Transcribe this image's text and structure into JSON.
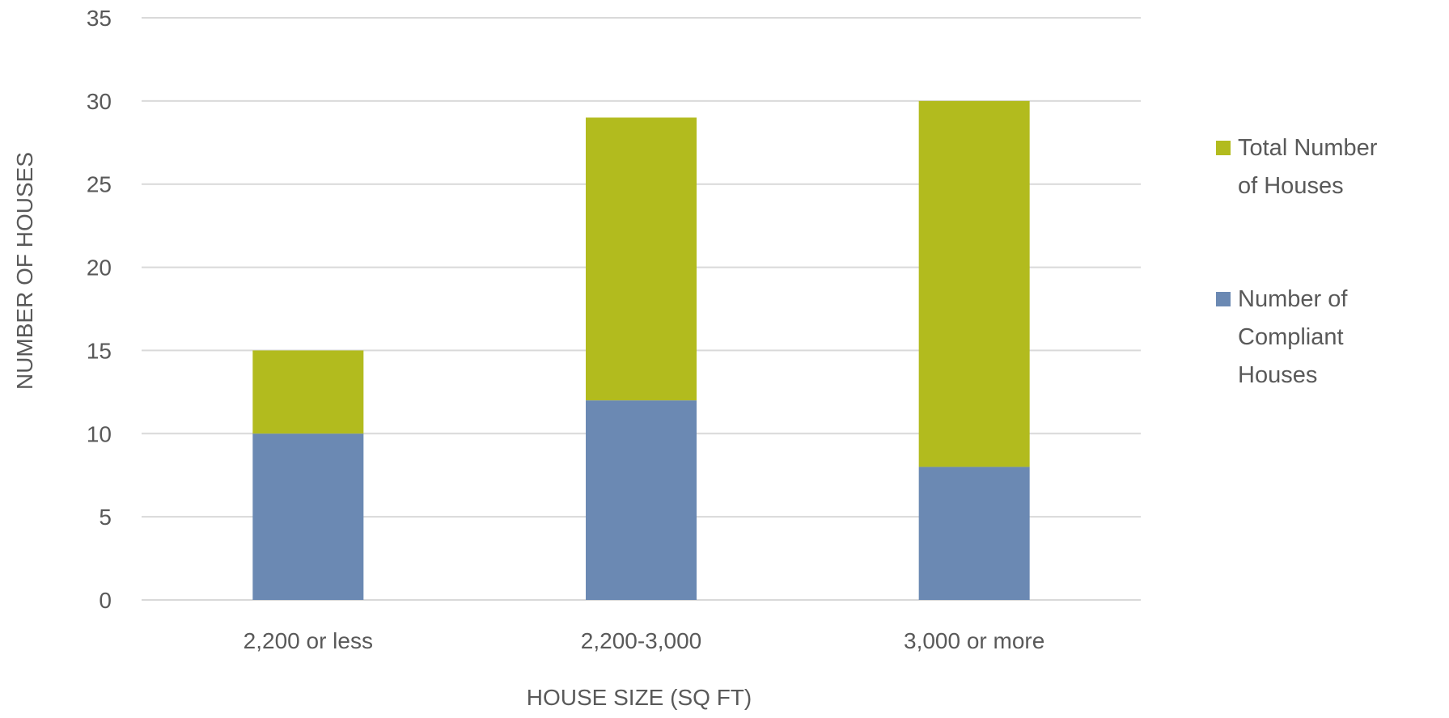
{
  "chart_data": {
    "type": "bar",
    "stacked": true,
    "categories": [
      "2,200 or less",
      "2,200-3,000",
      "3,000 or more"
    ],
    "series": [
      {
        "name": "Number of Compliant Houses",
        "values": [
          10,
          12,
          8
        ],
        "color": "#6b89b3",
        "legend_lines": [
          "Number of",
          "Compliant",
          "Houses"
        ]
      },
      {
        "name": "Total Number of Houses",
        "values": [
          5,
          17,
          22
        ],
        "color": "#b2bb1e",
        "legend_lines": [
          "Total Number",
          "of Houses"
        ]
      }
    ],
    "legend_order": [
      1,
      0
    ],
    "xlabel": "HOUSE SIZE (SQ FT)",
    "ylabel": "NUMBER OF HOUSES",
    "ylim": [
      0,
      35
    ],
    "yticks": [
      "0",
      "5",
      "10",
      "15",
      "20",
      "25",
      "30",
      "35"
    ],
    "grid": true,
    "legend_position": "right"
  }
}
